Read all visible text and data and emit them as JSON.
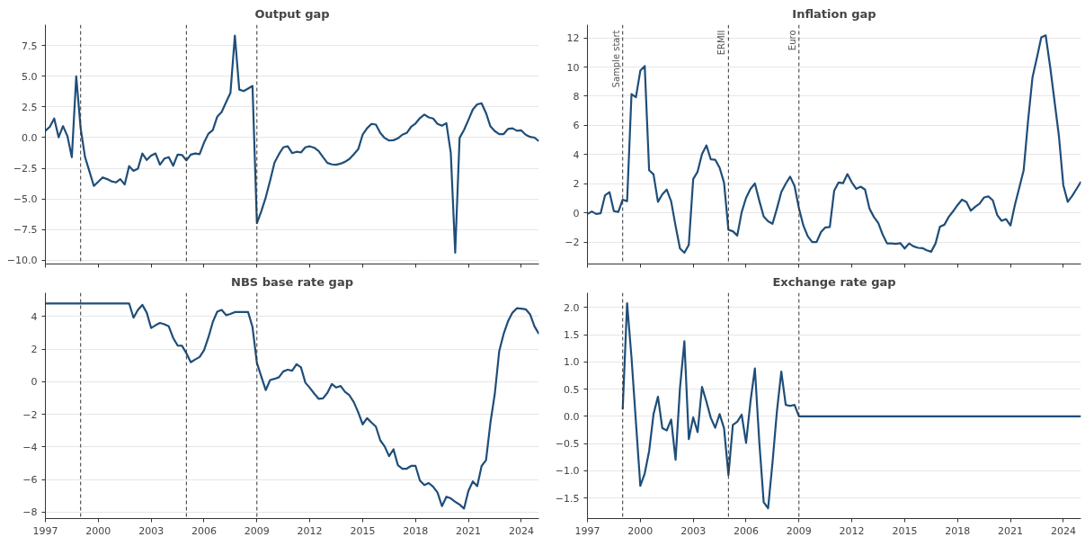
{
  "chart_data": [
    {
      "type": "line",
      "title": "Output gap",
      "tick_labels": "y",
      "grid": "y",
      "line_style": "solid",
      "x": [
        1997,
        1997.25,
        1997.5,
        1997.75,
        1998,
        1998.25,
        1998.5,
        1998.75,
        1999,
        1999.25,
        1999.5,
        1999.75,
        2000,
        2000.25,
        2000.5,
        2000.75,
        2001,
        2001.25,
        2001.5,
        2001.75,
        2002,
        2002.25,
        2002.5,
        2002.75,
        2003,
        2003.25,
        2003.5,
        2003.75,
        2004,
        2004.25,
        2004.5,
        2004.75,
        2005,
        2005.25,
        2005.5,
        2005.75,
        2006,
        2006.25,
        2006.5,
        2006.75,
        2007,
        2007.25,
        2007.5,
        2007.75,
        2008,
        2008.25,
        2008.5,
        2008.75,
        2009,
        2009.25,
        2009.5,
        2009.75,
        2010,
        2010.25,
        2010.5,
        2010.75,
        2011,
        2011.25,
        2011.5,
        2011.75,
        2012,
        2012.25,
        2012.5,
        2012.75,
        2013,
        2013.25,
        2013.5,
        2013.75,
        2014,
        2014.25,
        2014.5,
        2014.75,
        2015,
        2015.25,
        2015.5,
        2015.75,
        2016,
        2016.25,
        2016.5,
        2016.75,
        2017,
        2017.25,
        2017.5,
        2017.75,
        2018,
        2018.25,
        2018.5,
        2018.75,
        2019,
        2019.25,
        2019.5,
        2019.75,
        2020,
        2020.25,
        2020.5,
        2020.75,
        2021,
        2021.25,
        2021.5,
        2021.75,
        2022,
        2022.25,
        2022.5,
        2022.75,
        2023,
        2023.25,
        2023.5,
        2023.75,
        2024,
        2024.25,
        2024.5,
        2024.75,
        2025
      ],
      "series": [
        {
          "color": "#1f4e79",
          "values": [
            0.56,
            0.88,
            1.56,
            0.03,
            0.94,
            0.12,
            -1.59,
            5.0,
            0.76,
            -1.59,
            -2.76,
            -3.94,
            -3.59,
            -3.24,
            -3.38,
            -3.56,
            -3.65,
            -3.38,
            -3.82,
            -2.32,
            -2.71,
            -2.53,
            -1.29,
            -1.82,
            -1.47,
            -1.29,
            -2.21,
            -1.71,
            -1.59,
            -2.29,
            -1.38,
            -1.41,
            -1.85,
            -1.38,
            -1.29,
            -1.35,
            -0.41,
            0.32,
            0.62,
            1.71,
            2.09,
            2.88,
            3.65,
            8.32,
            3.91,
            3.79,
            4.0,
            4.21,
            -6.97,
            -6.0,
            -4.88,
            -3.5,
            -2.03,
            -1.35,
            -0.79,
            -0.71,
            -1.26,
            -1.15,
            -1.21,
            -0.79,
            -0.71,
            -0.82,
            -1.09,
            -1.59,
            -2.06,
            -2.18,
            -2.21,
            -2.12,
            -1.97,
            -1.74,
            -1.35,
            -0.94,
            0.24,
            0.76,
            1.12,
            1.06,
            0.38,
            -0.03,
            -0.24,
            -0.21,
            -0.06,
            0.24,
            0.38,
            0.88,
            1.15,
            1.59,
            1.88,
            1.65,
            1.56,
            1.12,
            0.97,
            1.18,
            -1.24,
            -9.38,
            -0.03,
            0.62,
            1.44,
            2.29,
            2.71,
            2.79,
            2.0,
            0.91,
            0.53,
            0.29,
            0.29,
            0.71,
            0.76,
            0.56,
            0.59,
            0.24,
            0.06,
            0.0,
            -0.29
          ]
        }
      ],
      "xlim": [
        1997,
        2025
      ],
      "xticks": [
        1997,
        2000,
        2003,
        2006,
        2009,
        2012,
        2015,
        2018,
        2021,
        2024
      ],
      "ylim": [
        -10.3,
        9.2
      ],
      "yticks": [
        {
          "value": -10,
          "label": "−10.0"
        },
        {
          "value": -7.5,
          "label": "−7.5"
        },
        {
          "value": -5,
          "label": "−5.0"
        },
        {
          "value": -2.5,
          "label": "−2.5"
        },
        {
          "value": 0,
          "label": "0.0"
        },
        {
          "value": 2.5,
          "label": "2.5"
        },
        {
          "value": 5,
          "label": "5.0"
        },
        {
          "value": 7.5,
          "label": "7.5"
        }
      ],
      "ref_lines": [
        {
          "axis": "x",
          "value": 1999,
          "color": "#333333",
          "line_style": "dashed"
        },
        {
          "axis": "x",
          "value": 2005,
          "color": "#333333",
          "line_style": "dashed"
        },
        {
          "axis": "x",
          "value": 2009,
          "color": "#333333",
          "line_style": "dashed"
        }
      ]
    },
    {
      "type": "line",
      "title": "Inflation gap",
      "tick_labels": "y",
      "grid": "y",
      "line_style": "solid",
      "x": [
        1997,
        1997.25,
        1997.5,
        1997.75,
        1998,
        1998.25,
        1998.5,
        1998.75,
        1999,
        1999.25,
        1999.5,
        1999.75,
        2000,
        2000.25,
        2000.5,
        2000.75,
        2001,
        2001.25,
        2001.5,
        2001.75,
        2002,
        2002.25,
        2002.5,
        2002.75,
        2003,
        2003.25,
        2003.5,
        2003.75,
        2004,
        2004.25,
        2004.5,
        2004.75,
        2005,
        2005.25,
        2005.5,
        2005.75,
        2006,
        2006.25,
        2006.5,
        2006.75,
        2007,
        2007.25,
        2007.5,
        2007.75,
        2008,
        2008.25,
        2008.5,
        2008.75,
        2009,
        2009.25,
        2009.5,
        2009.75,
        2010,
        2010.25,
        2010.5,
        2010.75,
        2011,
        2011.25,
        2011.5,
        2011.75,
        2012,
        2012.25,
        2012.5,
        2012.75,
        2013,
        2013.25,
        2013.5,
        2013.75,
        2014,
        2014.25,
        2014.5,
        2014.75,
        2015,
        2015.25,
        2015.5,
        2015.75,
        2016,
        2016.25,
        2016.5,
        2016.75,
        2017,
        2017.25,
        2017.5,
        2017.75,
        2018,
        2018.25,
        2018.5,
        2018.75,
        2019,
        2019.25,
        2019.5,
        2019.75,
        2020,
        2020.25,
        2020.5,
        2020.75,
        2021,
        2021.25,
        2021.5,
        2021.75,
        2022,
        2022.25,
        2022.5,
        2022.75,
        2023,
        2023.25,
        2023.5,
        2023.75,
        2024,
        2024.25,
        2024.5,
        2024.75,
        2025
      ],
      "series": [
        {
          "color": "#1f4e79",
          "values": [
            -0.07,
            0.1,
            -0.07,
            -0.02,
            1.21,
            1.43,
            0.12,
            0.07,
            0.91,
            0.81,
            8.15,
            7.93,
            9.75,
            10.07,
            2.93,
            2.64,
            0.76,
            1.28,
            1.6,
            0.79,
            -0.89,
            -2.44,
            -2.73,
            -2.19,
            2.32,
            2.83,
            4.04,
            4.63,
            3.67,
            3.65,
            3.1,
            2.07,
            -1.16,
            -1.26,
            -1.55,
            0.05,
            1.03,
            1.65,
            2.02,
            0.84,
            -0.25,
            -0.57,
            -0.74,
            0.3,
            1.43,
            2.0,
            2.49,
            1.85,
            0.32,
            -0.86,
            -1.6,
            -2.0,
            -2.0,
            -1.31,
            -0.99,
            -0.96,
            1.53,
            2.09,
            2.04,
            2.66,
            2.09,
            1.65,
            1.8,
            1.6,
            0.3,
            -0.27,
            -0.69,
            -1.48,
            -2.09,
            -2.09,
            -2.12,
            -2.07,
            -2.44,
            -2.09,
            -2.29,
            -2.39,
            -2.41,
            -2.56,
            -2.66,
            -2.09,
            -0.94,
            -0.81,
            -0.27,
            0.12,
            0.54,
            0.91,
            0.76,
            0.15,
            0.42,
            0.64,
            1.06,
            1.13,
            0.86,
            -0.15,
            -0.54,
            -0.42,
            -0.86,
            0.54,
            1.72,
            2.93,
            6.33,
            9.29,
            10.64,
            12.04,
            12.17,
            10.05,
            7.66,
            5.27,
            1.9,
            0.76,
            1.16,
            1.65,
            2.14
          ]
        }
      ],
      "xlim": [
        1997,
        2025
      ],
      "xticks": [
        1997,
        2000,
        2003,
        2006,
        2009,
        2012,
        2015,
        2018,
        2021,
        2024
      ],
      "ylim": [
        -3.5,
        12.9
      ],
      "yticks": [
        {
          "value": -2,
          "label": "−2"
        },
        0,
        2,
        4,
        6,
        8,
        10,
        12
      ],
      "ref_lines": [
        {
          "axis": "x",
          "value": 1999,
          "label": "Sample start",
          "color": "#333333",
          "line_style": "dashed"
        },
        {
          "axis": "x",
          "value": 2005,
          "label": "ERMII",
          "color": "#333333",
          "line_style": "dashed"
        },
        {
          "axis": "x",
          "value": 2009,
          "label": "Euro",
          "color": "#333333",
          "line_style": "dashed"
        }
      ]
    },
    {
      "type": "line",
      "title": "NBS base rate gap",
      "grid": "y",
      "line_style": "solid",
      "x": [
        1997,
        1997.25,
        1997.5,
        1997.75,
        1998,
        1998.25,
        1998.5,
        1998.75,
        1999,
        1999.25,
        1999.5,
        1999.75,
        2000,
        2000.25,
        2000.5,
        2000.75,
        2001,
        2001.25,
        2001.5,
        2001.75,
        2002,
        2002.25,
        2002.5,
        2002.75,
        2003,
        2003.25,
        2003.5,
        2003.75,
        2004,
        2004.25,
        2004.5,
        2004.75,
        2005,
        2005.25,
        2005.5,
        2005.75,
        2006,
        2006.25,
        2006.5,
        2006.75,
        2007,
        2007.25,
        2007.5,
        2007.75,
        2008,
        2008.25,
        2008.5,
        2008.75,
        2009,
        2009.25,
        2009.5,
        2009.75,
        2010,
        2010.25,
        2010.5,
        2010.75,
        2011,
        2011.25,
        2011.5,
        2011.75,
        2012,
        2012.25,
        2012.5,
        2012.75,
        2013,
        2013.25,
        2013.5,
        2013.75,
        2014,
        2014.25,
        2014.5,
        2014.75,
        2015,
        2015.25,
        2015.5,
        2015.75,
        2016,
        2016.25,
        2016.5,
        2016.75,
        2017,
        2017.25,
        2017.5,
        2017.75,
        2018,
        2018.25,
        2018.5,
        2018.75,
        2019,
        2019.25,
        2019.5,
        2019.75,
        2020,
        2020.25,
        2020.5,
        2020.75,
        2021,
        2021.25,
        2021.5,
        2021.75,
        2022,
        2022.25,
        2022.5,
        2022.75,
        2023,
        2023.25,
        2023.5,
        2023.75,
        2024,
        2024.25,
        2024.5,
        2024.75,
        2025
      ],
      "series": [
        {
          "color": "#1f4e79",
          "values": [
            4.8,
            4.8,
            4.8,
            4.8,
            4.8,
            4.8,
            4.8,
            4.8,
            4.8,
            4.8,
            4.8,
            4.8,
            4.8,
            4.8,
            4.8,
            4.8,
            4.8,
            4.8,
            4.8,
            4.8,
            3.92,
            4.4,
            4.71,
            4.23,
            3.29,
            3.46,
            3.6,
            3.52,
            3.39,
            2.68,
            2.22,
            2.2,
            1.74,
            1.19,
            1.36,
            1.51,
            1.93,
            2.72,
            3.66,
            4.29,
            4.4,
            4.08,
            4.15,
            4.27,
            4.27,
            4.27,
            4.27,
            3.35,
            1.15,
            0.31,
            -0.52,
            0.1,
            0.17,
            0.27,
            0.63,
            0.73,
            0.67,
            1.07,
            0.88,
            -0.06,
            -0.38,
            -0.73,
            -1.05,
            -1.03,
            -0.69,
            -0.15,
            -0.36,
            -0.27,
            -0.63,
            -0.84,
            -1.26,
            -1.88,
            -2.62,
            -2.24,
            -2.51,
            -2.76,
            -3.6,
            -3.98,
            -4.57,
            -4.15,
            -5.13,
            -5.34,
            -5.34,
            -5.17,
            -5.17,
            -6.07,
            -6.35,
            -6.22,
            -6.45,
            -6.81,
            -7.64,
            -7.06,
            -7.16,
            -7.37,
            -7.54,
            -7.79,
            -6.7,
            -6.12,
            -6.41,
            -5.17,
            -4.82,
            -2.51,
            -0.73,
            1.88,
            2.93,
            3.71,
            4.23,
            4.5,
            4.48,
            4.44,
            4.13,
            3.39,
            2.93
          ]
        }
      ],
      "xlim": [
        1997,
        2025
      ],
      "xticks": [
        1997,
        2000,
        2003,
        2006,
        2009,
        2012,
        2015,
        2018,
        2021,
        2024
      ],
      "ylim": [
        -8.4,
        5.45
      ],
      "yticks": [
        {
          "value": -8,
          "label": "−8"
        },
        {
          "value": -6,
          "label": "−6"
        },
        {
          "value": -4,
          "label": "−4"
        },
        {
          "value": -2,
          "label": "−2"
        },
        0,
        2,
        4
      ],
      "ref_lines": [
        {
          "axis": "x",
          "value": 1999,
          "color": "#333333",
          "line_style": "dashed"
        },
        {
          "axis": "x",
          "value": 2005,
          "color": "#333333",
          "line_style": "dashed"
        },
        {
          "axis": "x",
          "value": 2009,
          "color": "#333333",
          "line_style": "dashed"
        }
      ]
    },
    {
      "type": "line",
      "title": "Exchange rate gap",
      "grid": "y",
      "line_style": "solid",
      "x": [
        1999,
        1999.25,
        1999.5,
        1999.75,
        2000,
        2000.25,
        2000.5,
        2000.75,
        2001,
        2001.25,
        2001.5,
        2001.75,
        2002,
        2002.25,
        2002.5,
        2002.75,
        2003,
        2003.25,
        2003.5,
        2003.75,
        2004,
        2004.25,
        2004.5,
        2004.75,
        2005,
        2005.25,
        2005.5,
        2005.75,
        2006,
        2006.25,
        2006.5,
        2006.75,
        2007,
        2007.25,
        2007.5,
        2007.75,
        2008,
        2008.25,
        2008.5,
        2008.75,
        2009,
        2009.25,
        2009.5,
        2009.75,
        2010,
        2010.25,
        2010.5,
        2010.75,
        2011,
        2011.25,
        2011.5,
        2011.75,
        2012,
        2012.25,
        2012.5,
        2012.75,
        2013,
        2013.25,
        2013.5,
        2013.75,
        2014,
        2014.25,
        2014.5,
        2014.75,
        2015,
        2015.25,
        2015.5,
        2015.75,
        2016,
        2016.25,
        2016.5,
        2016.75,
        2017,
        2017.25,
        2017.5,
        2017.75,
        2018,
        2018.25,
        2018.5,
        2018.75,
        2019,
        2019.25,
        2019.5,
        2019.75,
        2020,
        2020.25,
        2020.5,
        2020.75,
        2021,
        2021.25,
        2021.5,
        2021.75,
        2022,
        2022.25,
        2022.5,
        2022.75,
        2023,
        2023.25,
        2023.5,
        2023.75,
        2024,
        2024.25,
        2024.5,
        2024.75,
        2025
      ],
      "series": [
        {
          "color": "#1f4e79",
          "values": [
            0.13,
            2.08,
            1.08,
            -0.1,
            -1.28,
            -1.05,
            -0.64,
            0.04,
            0.36,
            -0.22,
            -0.26,
            -0.06,
            -0.8,
            0.52,
            1.38,
            -0.42,
            -0.02,
            -0.29,
            0.54,
            0.27,
            -0.03,
            -0.21,
            0.04,
            -0.22,
            -1.08,
            -0.16,
            -0.1,
            0.03,
            -0.49,
            0.27,
            0.88,
            -0.47,
            -1.58,
            -1.69,
            -0.85,
            0.09,
            0.82,
            0.21,
            0.19,
            0.21,
            0,
            0,
            0,
            0,
            0,
            0,
            0,
            0,
            0,
            0,
            0,
            0,
            0,
            0,
            0,
            0,
            0,
            0,
            0,
            0,
            0,
            0,
            0,
            0,
            0,
            0,
            0,
            0,
            0,
            0,
            0,
            0,
            0,
            0,
            0,
            0,
            0,
            0,
            0,
            0,
            0,
            0,
            0,
            0,
            0,
            0,
            0,
            0,
            0,
            0,
            0,
            0,
            0,
            0,
            0,
            0,
            0,
            0,
            0,
            0,
            0,
            0,
            0,
            0,
            0
          ]
        }
      ],
      "xlim": [
        1997,
        2025
      ],
      "xticks": [
        1997,
        2000,
        2003,
        2006,
        2009,
        2012,
        2015,
        2018,
        2021,
        2024
      ],
      "ylim": [
        -1.88,
        2.27
      ],
      "yticks": [
        {
          "value": -1.5,
          "label": "−1.5"
        },
        {
          "value": -1,
          "label": "−1.0"
        },
        {
          "value": -0.5,
          "label": "−0.5"
        },
        {
          "value": 0,
          "label": "0.0"
        },
        0.5,
        {
          "value": 1,
          "label": "1.0"
        },
        1.5,
        {
          "value": 2,
          "label": "2.0"
        }
      ],
      "ref_lines": [
        {
          "axis": "x",
          "value": 1999,
          "color": "#333333",
          "line_style": "dashed"
        },
        {
          "axis": "x",
          "value": 2005,
          "color": "#333333",
          "line_style": "dashed"
        },
        {
          "axis": "x",
          "value": 2009,
          "color": "#333333",
          "line_style": "dashed"
        }
      ]
    }
  ]
}
